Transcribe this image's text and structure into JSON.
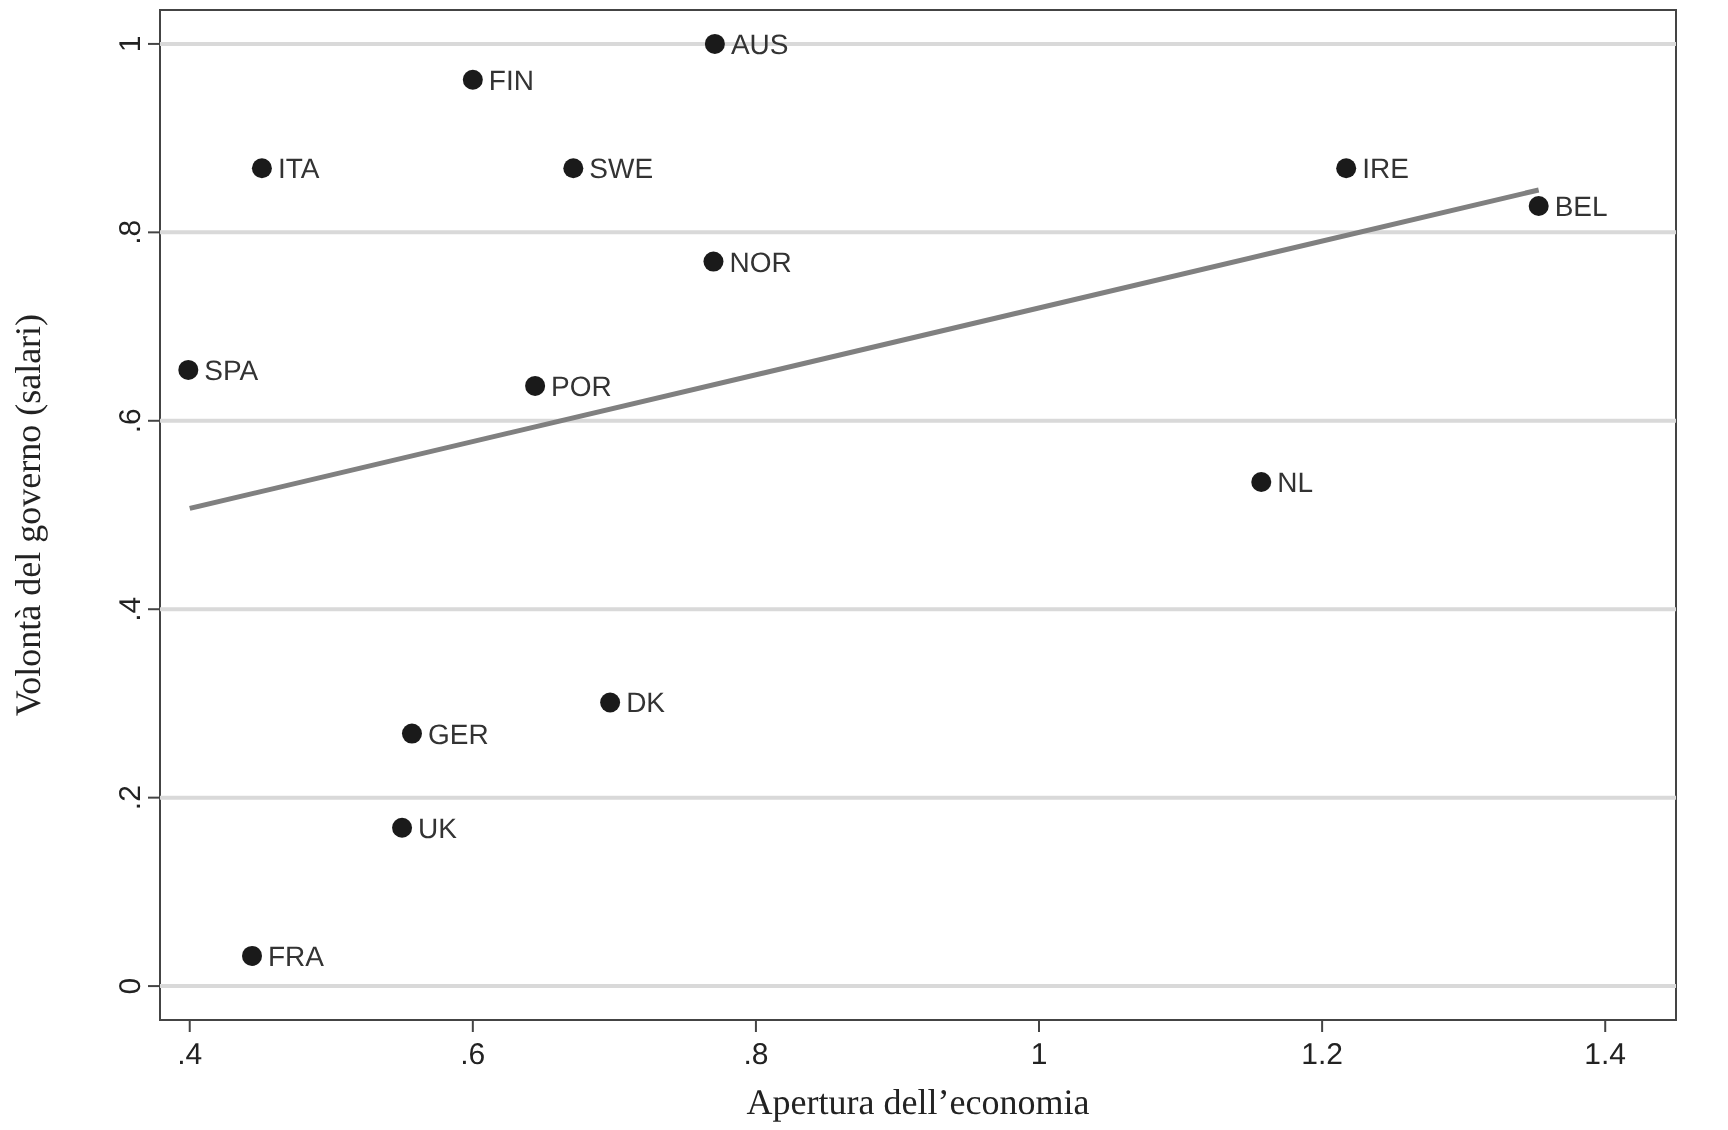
{
  "chart_data": {
    "type": "scatter",
    "xlabel": "Apertura dell’economia",
    "ylabel": "Volontà del governo (salari)",
    "xlim": [
      0.379,
      1.45
    ],
    "ylim": [
      -0.036,
      1.036
    ],
    "xticks": [
      {
        "value": 0.4,
        "label": ".4"
      },
      {
        "value": 0.6,
        "label": ".6"
      },
      {
        "value": 0.8,
        "label": ".8"
      },
      1,
      1.2,
      1.4
    ],
    "yticks": [
      0,
      {
        "value": 0.2,
        "label": ".2"
      },
      {
        "value": 0.4,
        "label": ".4"
      },
      {
        "value": 0.6,
        "label": ".6"
      },
      {
        "value": 0.8,
        "label": ".8"
      },
      1
    ],
    "grid": "y",
    "series": [
      {
        "marker": "circle",
        "color": "#1a1a1a",
        "x": [
          0.771,
          0.6,
          0.451,
          0.671,
          1.217,
          0.77,
          1.353,
          0.399,
          0.644,
          1.157,
          0.697,
          0.557,
          0.55,
          0.444
        ],
        "values": [
          1.0,
          0.962,
          0.868,
          0.868,
          0.868,
          0.769,
          0.828,
          0.654,
          0.637,
          0.535,
          0.301,
          0.268,
          0.168,
          0.032
        ]
      },
      {
        "type": "line",
        "marker": "none",
        "color": "#808080",
        "x": [
          0.4,
          1.353
        ],
        "values": [
          0.507,
          0.845
        ]
      }
    ],
    "annotations": [
      {
        "text": "AUS",
        "x": 0.771,
        "y": 1.0
      },
      {
        "text": "FIN",
        "x": 0.6,
        "y": 0.962
      },
      {
        "text": "ITA",
        "x": 0.451,
        "y": 0.868
      },
      {
        "text": "SWE",
        "x": 0.671,
        "y": 0.868
      },
      {
        "text": "IRE",
        "x": 1.217,
        "y": 0.868
      },
      {
        "text": "NOR",
        "x": 0.77,
        "y": 0.769
      },
      {
        "text": "BEL",
        "x": 1.353,
        "y": 0.828
      },
      {
        "text": "SPA",
        "x": 0.399,
        "y": 0.654
      },
      {
        "text": "POR",
        "x": 0.644,
        "y": 0.637
      },
      {
        "text": "NL",
        "x": 1.157,
        "y": 0.535
      },
      {
        "text": "DK",
        "x": 0.697,
        "y": 0.301
      },
      {
        "text": "GER",
        "x": 0.557,
        "y": 0.268
      },
      {
        "text": "UK",
        "x": 0.55,
        "y": 0.168
      },
      {
        "text": "FRA",
        "x": 0.444,
        "y": 0.032
      }
    ]
  }
}
